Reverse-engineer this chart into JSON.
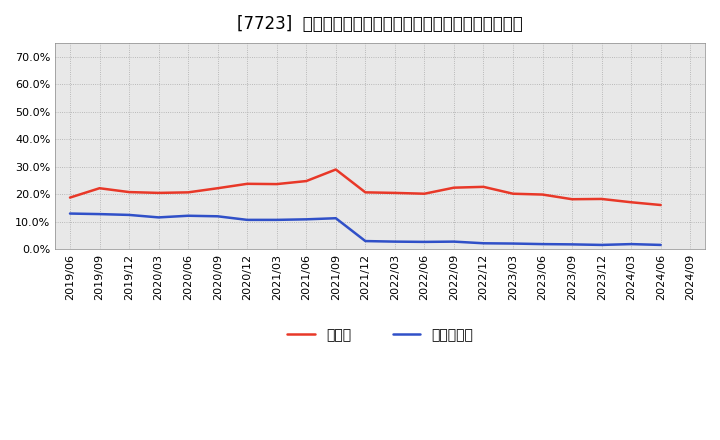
{
  "title": "[7723]  現預金、有利子負債の総資産に対する比率の推移",
  "ylim": [
    0.0,
    0.75
  ],
  "yticks": [
    0.0,
    0.1,
    0.2,
    0.3,
    0.4,
    0.5,
    0.6,
    0.7
  ],
  "dates": [
    "2019/06",
    "2019/09",
    "2019/12",
    "2020/03",
    "2020/06",
    "2020/09",
    "2020/12",
    "2021/03",
    "2021/06",
    "2021/09",
    "2021/12",
    "2022/03",
    "2022/06",
    "2022/09",
    "2022/12",
    "2023/03",
    "2023/06",
    "2023/09",
    "2023/12",
    "2024/03",
    "2024/06",
    "2024/09"
  ],
  "cash": [
    0.188,
    0.222,
    0.208,
    0.205,
    0.207,
    0.222,
    0.238,
    0.237,
    0.248,
    0.29,
    0.207,
    0.205,
    0.202,
    0.224,
    0.227,
    0.202,
    0.199,
    0.182,
    0.183,
    0.171,
    0.161,
    null
  ],
  "debt": [
    0.13,
    0.128,
    0.125,
    0.116,
    0.122,
    0.12,
    0.107,
    0.107,
    0.109,
    0.113,
    0.03,
    0.028,
    0.027,
    0.028,
    0.022,
    0.021,
    0.019,
    0.018,
    0.016,
    0.019,
    0.016,
    null
  ],
  "cash_color": "#e83828",
  "debt_color": "#3050c8",
  "legend_cash": "現預金",
  "legend_debt": "有利子負債",
  "background_color": "#ffffff",
  "plot_bg_color": "#e8e8e8",
  "grid_color": "#aaaaaa",
  "title_fontsize": 12,
  "tick_fontsize": 8,
  "legend_fontsize": 10,
  "line_width": 1.8
}
